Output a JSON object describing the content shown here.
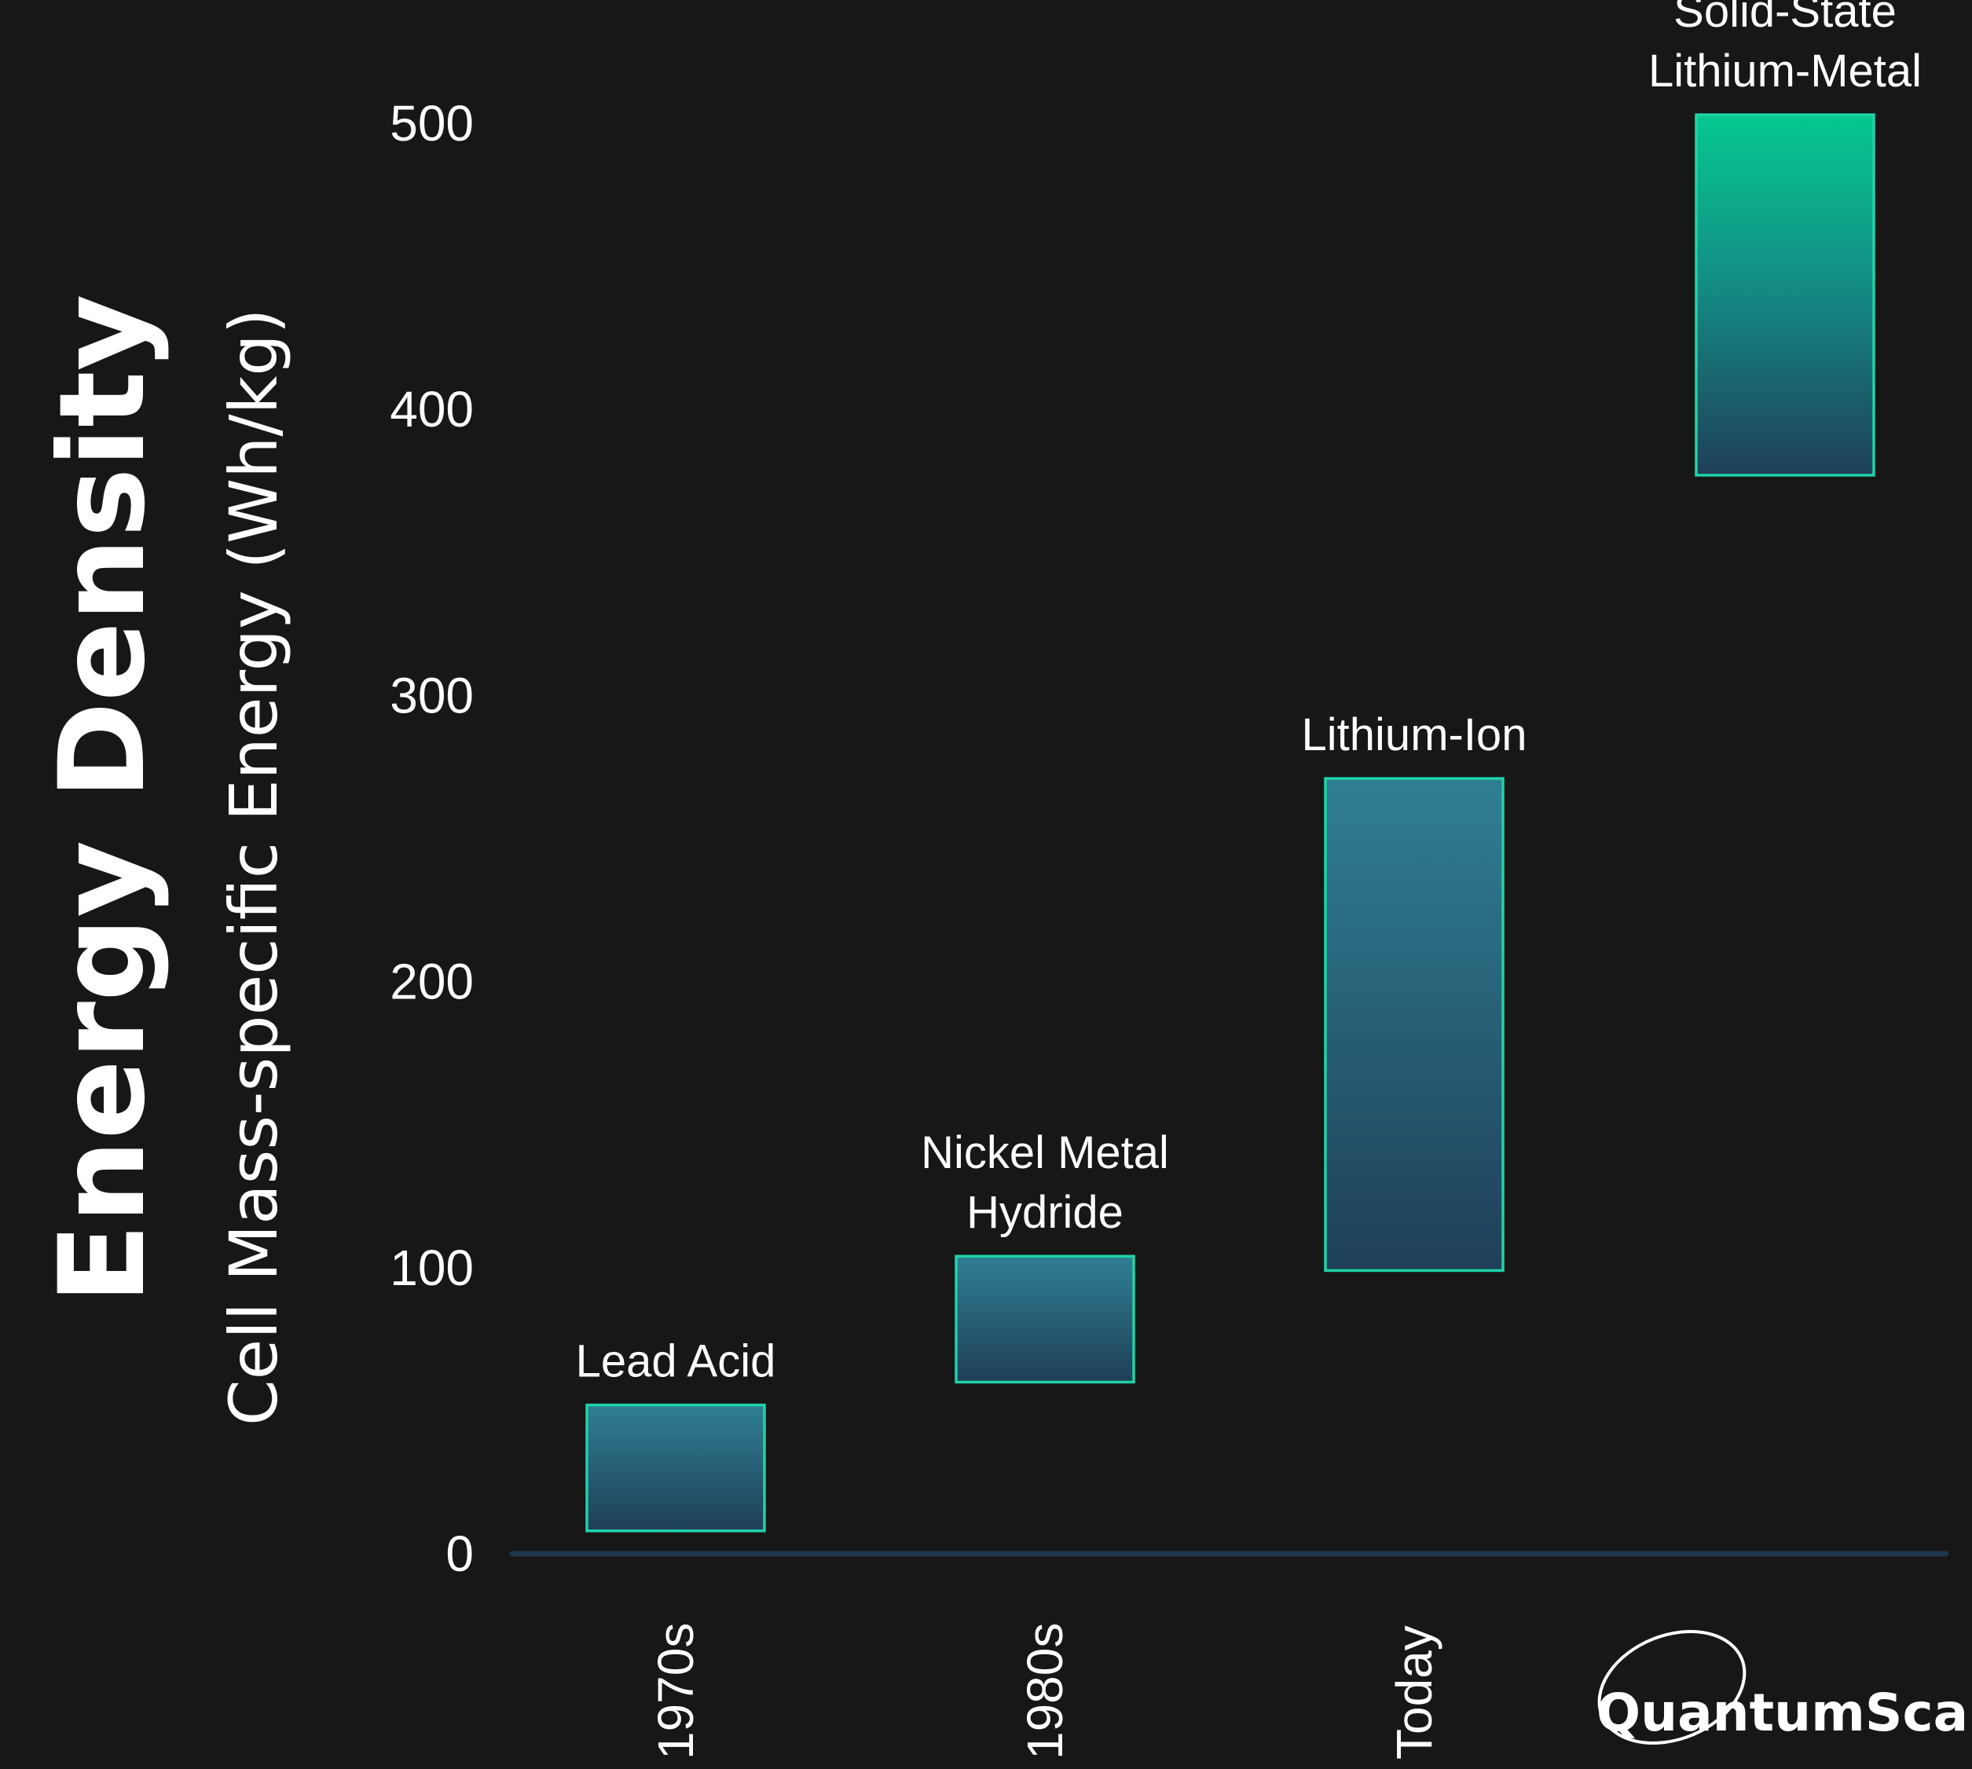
{
  "chart_data": {
    "type": "bar",
    "subtype": "floating-range",
    "title": "Energy Density",
    "ylabel": "Cell Mass-specific Energy (Wh/kg)",
    "ylim": [
      0,
      500
    ],
    "yticks": [
      0,
      100,
      200,
      300,
      400,
      500
    ],
    "grid": false,
    "categories": [
      "1970s",
      "1980s",
      "Today",
      "QuantumScape"
    ],
    "bars": [
      {
        "label": "Lead Acid",
        "category": "1970s",
        "min": 8,
        "max": 52
      },
      {
        "label": "Nickel Metal Hydride",
        "label_lines": [
          "Nickel Metal",
          "Hydride"
        ],
        "category": "1980s",
        "min": 60,
        "max": 104
      },
      {
        "label": "Lithium-Ion",
        "category": "Today",
        "min": 99,
        "max": 271
      },
      {
        "label": "Solid-State Lithium-Metal",
        "label_lines": [
          "Solid-State",
          "Lithium-Metal"
        ],
        "category": "QuantumScape",
        "min": 377,
        "max": 503
      }
    ],
    "colors": {
      "background": "#171717",
      "bar_stroke": "#1fd3a6",
      "bar_fill_top": "#2f7f93",
      "bar_fill_bottom": "#1f3f58",
      "highlight_fill_top": "#06c890",
      "axis_line": "#20364a",
      "text": "#ffffff"
    }
  },
  "logo": {
    "text": "QuantumScape",
    "icon": "swoosh-ellipse-icon"
  }
}
